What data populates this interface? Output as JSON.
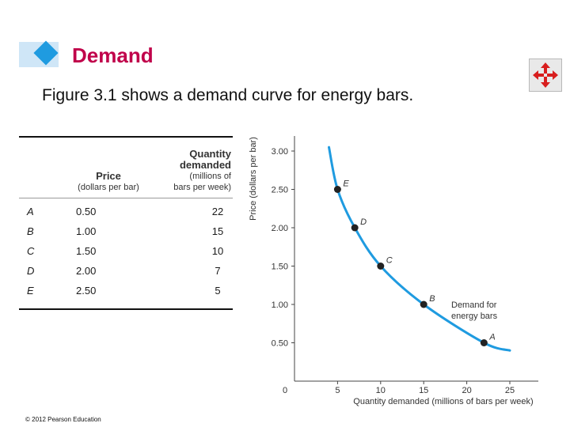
{
  "header": {
    "title": "Demand",
    "subtitle": "Figure 3.1 shows a demand curve for energy bars.",
    "nav_icon": "move-arrows-icon",
    "nav_color": "#d81e1e"
  },
  "table": {
    "columns": [
      "",
      "Price",
      "Quantity demanded"
    ],
    "column_units": [
      "",
      "(dollars per bar)",
      "(millions of bars per week)"
    ],
    "rows": [
      {
        "label": "A",
        "price": "0.50",
        "quantity": "22"
      },
      {
        "label": "B",
        "price": "1.00",
        "quantity": "15"
      },
      {
        "label": "C",
        "price": "1.50",
        "quantity": "10"
      },
      {
        "label": "D",
        "price": "2.00",
        "quantity": "7"
      },
      {
        "label": "E",
        "price": "2.50",
        "quantity": "5"
      }
    ]
  },
  "chart_data": {
    "type": "line",
    "xlabel": "Quantity demanded (millions of bars per week)",
    "ylabel": "Price (dollars per bar)",
    "xlim": [
      0,
      25
    ],
    "ylim": [
      0,
      3.0
    ],
    "x_ticks": [
      "0",
      "5",
      "10",
      "15",
      "20",
      "25"
    ],
    "y_ticks": [
      "0.50",
      "1.00",
      "1.50",
      "2.00",
      "2.50",
      "3.00"
    ],
    "series": [
      {
        "name": "Demand for energy bars",
        "color": "#1f9be0",
        "curve": [
          {
            "x": 4.0,
            "y": 3.05
          },
          {
            "x": 5.0,
            "y": 2.5
          },
          {
            "x": 7.0,
            "y": 2.0
          },
          {
            "x": 10.0,
            "y": 1.5
          },
          {
            "x": 15.0,
            "y": 1.0
          },
          {
            "x": 22.0,
            "y": 0.5
          },
          {
            "x": 25.0,
            "y": 0.4
          }
        ],
        "points": [
          {
            "label": "E",
            "x": 5,
            "y": 2.5
          },
          {
            "label": "D",
            "x": 7,
            "y": 2.0
          },
          {
            "label": "C",
            "x": 10,
            "y": 1.5
          },
          {
            "label": "B",
            "x": 15,
            "y": 1.0
          },
          {
            "label": "A",
            "x": 22,
            "y": 0.5
          }
        ]
      }
    ],
    "annotations": [
      "Demand for",
      "energy bars"
    ],
    "grid": false
  },
  "footer": {
    "copyright": "© 2012 Pearson Education"
  }
}
